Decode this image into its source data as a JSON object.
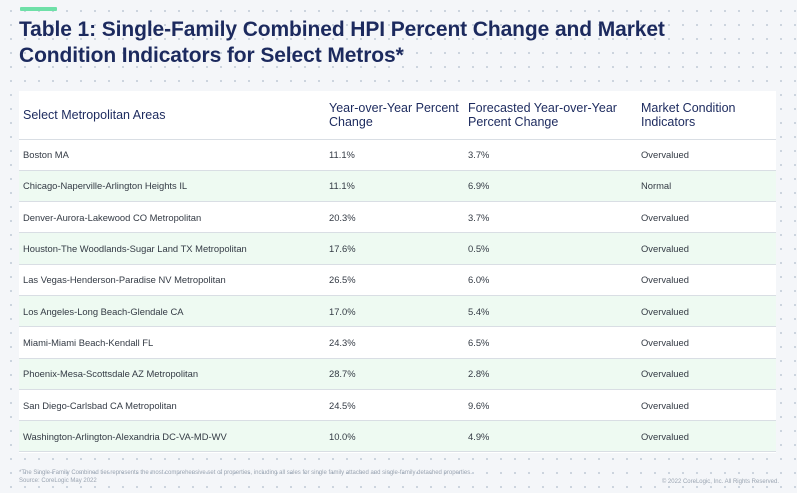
{
  "title": "Table 1: Single-Family Combined HPI Percent Change and Market Condition Indicators for Select Metros*",
  "table": {
    "headers": [
      "Select Metropolitan Areas",
      "Year-over-Year Percent Change",
      "Forecasted Year-over-Year Percent Change",
      "Market Condition Indicators"
    ],
    "rows": [
      [
        "Boston MA",
        "11.1%",
        "3.7%",
        "Overvalued"
      ],
      [
        "Chicago-Naperville-Arlington Heights IL",
        "11.1%",
        "6.9%",
        "Normal"
      ],
      [
        "Denver-Aurora-Lakewood CO Metropolitan",
        "20.3%",
        "3.7%",
        "Overvalued"
      ],
      [
        "Houston-The Woodlands-Sugar Land TX Metropolitan",
        "17.6%",
        "0.5%",
        "Overvalued"
      ],
      [
        "Las Vegas-Henderson-Paradise NV Metropolitan",
        "26.5%",
        "6.0%",
        "Overvalued"
      ],
      [
        "Los Angeles-Long Beach-Glendale CA",
        "17.0%",
        "5.4%",
        "Overvalued"
      ],
      [
        "Miami-Miami Beach-Kendall FL",
        "24.3%",
        "6.5%",
        "Overvalued"
      ],
      [
        "Phoenix-Mesa-Scottsdale AZ Metropolitan",
        "28.7%",
        "2.8%",
        "Overvalued"
      ],
      [
        "San Diego-Carlsbad CA Metropolitan",
        "24.5%",
        "9.6%",
        "Overvalued"
      ],
      [
        "Washington-Arlington-Alexandria DC-VA-MD-WV",
        "10.0%",
        "4.9%",
        "Overvalued"
      ]
    ]
  },
  "footnote": {
    "line1": "*The Single-Family Combined tier represents the most comprehensive set of properties, including all sales for single family attached and single-family detached properties.",
    "line2": "Source: CoreLogic May 2022"
  },
  "copyright": "© 2022 CoreLogic, Inc. All Rights Reserved.",
  "colors": {
    "accent": "#6ee0a8",
    "title": "#1c2a5e",
    "row_alt": "#eefaf2"
  }
}
